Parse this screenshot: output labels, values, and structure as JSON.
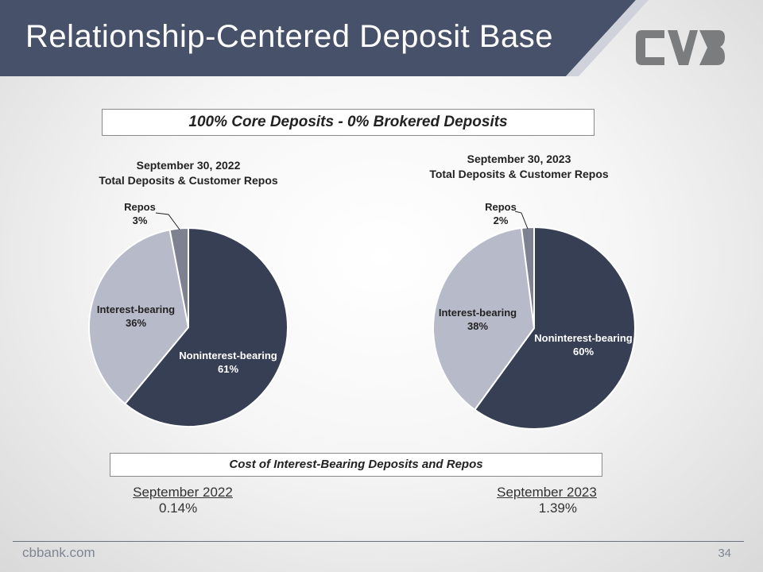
{
  "slide": {
    "title": "Relationship-Centered Deposit Base",
    "banner": "100% Core Deposits - 0% Brokered Deposits",
    "footer_url": "cbbank.com",
    "page_number": "34"
  },
  "colors": {
    "header": "#475169",
    "noninterest": "#373f54",
    "interest": "#b7bac8",
    "repos": "#7d8190",
    "logo": "#7b7c7e"
  },
  "chart_data": [
    {
      "type": "pie",
      "title_line1": "September 30, 2022",
      "title_line2": "Total Deposits & Customer Repos",
      "slices": [
        {
          "label": "Noninterest-bearing",
          "value": 61,
          "display": "61%"
        },
        {
          "label": "Interest-bearing",
          "value": 36,
          "display": "36%"
        },
        {
          "label": "Repos",
          "value": 3,
          "display": "3%"
        }
      ]
    },
    {
      "type": "pie",
      "title_line1": "September 30, 2023",
      "title_line2": "Total Deposits & Customer Repos",
      "slices": [
        {
          "label": "Noninterest-bearing",
          "value": 60,
          "display": "60%"
        },
        {
          "label": "Interest-bearing",
          "value": 38,
          "display": "38%"
        },
        {
          "label": "Repos",
          "value": 2,
          "display": "2%"
        }
      ]
    }
  ],
  "cost": {
    "heading": "Cost of Interest-Bearing Deposits and Repos",
    "left": {
      "period": "September 2022",
      "rate": "0.14%"
    },
    "right": {
      "period": "September 2023",
      "rate": "1.39%"
    }
  }
}
